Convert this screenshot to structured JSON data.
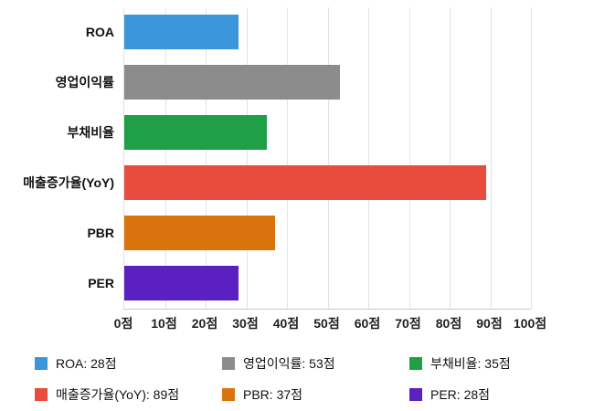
{
  "chart_data": {
    "type": "bar",
    "orientation": "horizontal",
    "title": "",
    "unit": "점",
    "categories": [
      "ROA",
      "영업이익률",
      "부채비율",
      "매출증가율(YoY)",
      "PBR",
      "PER"
    ],
    "values": [
      28,
      53,
      35,
      89,
      37,
      28
    ],
    "colors": [
      "#3B97D9",
      "#8C8C8C",
      "#1FA046",
      "#E74C3C",
      "#D9730D",
      "#5A20C0"
    ],
    "xlim": [
      0,
      100
    ],
    "x_ticks": [
      0,
      10,
      20,
      30,
      40,
      50,
      60,
      70,
      80,
      90,
      100
    ],
    "x_tick_labels": [
      "0점",
      "10점",
      "20점",
      "30점",
      "40점",
      "50점",
      "60점",
      "70점",
      "80점",
      "90점",
      "100점"
    ],
    "grid": true,
    "legend_position": "bottom",
    "legend_labels": [
      "ROA: 28점",
      "영업이익률: 53점",
      "부채비율: 35점",
      "매출증가율(YoY): 89점",
      "PBR: 37점",
      "PER: 28점"
    ]
  }
}
